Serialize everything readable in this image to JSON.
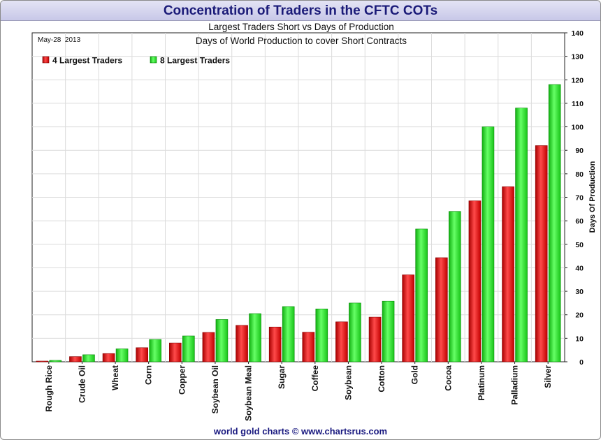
{
  "header": {
    "title": "Concentration of Traders in the CFTC COTs"
  },
  "chart_data": {
    "type": "bar",
    "title": "Largest Traders Short vs Days of Production",
    "subtitle": "Days of World Production to cover Short Contracts",
    "date_label": "May-28  2013",
    "ylabel": "Days Of Production",
    "xlabel": "",
    "ylim": [
      0,
      140
    ],
    "yticks": [
      0,
      10,
      20,
      30,
      40,
      50,
      60,
      70,
      80,
      90,
      100,
      110,
      120,
      130,
      140
    ],
    "y_axis_side": "right",
    "grid": true,
    "legend_position": "top-left",
    "categories": [
      "Rough Rice",
      "Crude Oil",
      "Wheat",
      "Corn",
      "Copper",
      "Soybean Oil",
      "Soybean Meal",
      "Sugar",
      "Coffee",
      "Soybean",
      "Cotton",
      "Gold",
      "Cocoa",
      "Platinum",
      "Palladium",
      "Silver"
    ],
    "series": [
      {
        "name": "4 Largest Traders",
        "color": "#ee1111",
        "values": [
          0.3,
          2.2,
          3.5,
          6,
          8,
          12.5,
          15.5,
          14.8,
          12.6,
          17,
          19,
          37,
          44.3,
          68.5,
          74.5,
          92
        ]
      },
      {
        "name": "8 Largest Traders",
        "color": "#22dd22",
        "values": [
          0.6,
          3,
          5.5,
          9.5,
          11,
          18,
          20.5,
          23.5,
          22.5,
          25,
          25.8,
          56.5,
          64,
          100,
          108,
          118
        ]
      }
    ]
  },
  "footer": {
    "text": "world gold charts © www.chartsrus.com"
  }
}
